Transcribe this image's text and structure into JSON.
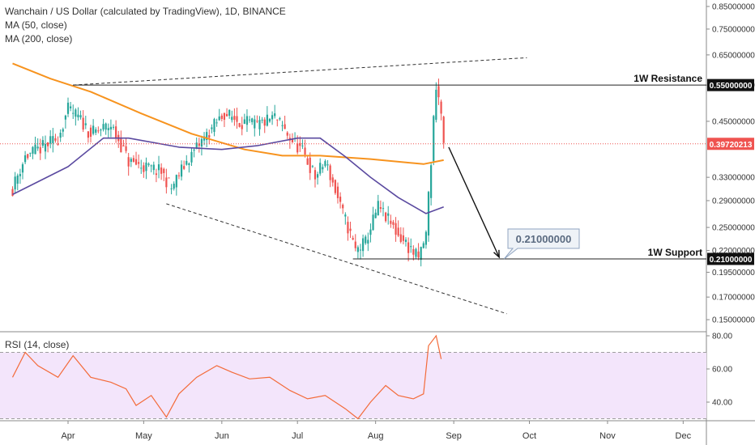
{
  "header": {
    "title": "Wanchain / US Dollar (calculated by TradingView), 1D, BINANCE",
    "ma50_label": "MA (50, close)",
    "ma200_label": "MA (200, close)",
    "rsi_label": "RSI (14, close)"
  },
  "colors": {
    "up": "#26a69a",
    "down": "#ef5350",
    "ma50": "#5b4aa0",
    "ma200": "#f7931e",
    "rsi": "#f36b3a",
    "rsi_band": "#f3e5fb",
    "last_price": "#ef5350"
  },
  "chart_data": [
    {
      "type": "candlestick",
      "title": "Wanchain / US Dollar (calculated by TradingView), 1D, BINANCE",
      "price_axis_labels": [
        "0.85000000",
        "0.75000000",
        "0.65000000",
        "0.55000000",
        "0.45000000",
        "0.39720213",
        "0.33000000",
        "0.29000000",
        "0.25000000",
        "0.22000000",
        "0.21000000",
        "0.19500000",
        "0.17000000",
        "0.15000000"
      ],
      "price_ticks": [
        0.85,
        0.75,
        0.65,
        0.55,
        0.45,
        0.33,
        0.29,
        0.25,
        0.22,
        0.195,
        0.17,
        0.15
      ],
      "time_axis_labels": [
        "Apr",
        "May",
        "Jun",
        "Jul",
        "Aug",
        "Sep",
        "Oct",
        "Nov",
        "Dec"
      ],
      "last_price": 0.39720213,
      "levels": [
        {
          "label": "1W Resistance",
          "value": 0.55
        },
        {
          "label": "1W Support",
          "value": 0.21
        }
      ],
      "target_callout": "0.21000000",
      "close_path": [
        {
          "date": "Mar 10",
          "price": 0.31
        },
        {
          "date": "Mar 15",
          "price": 0.37
        },
        {
          "date": "Mar 22",
          "price": 0.39
        },
        {
          "date": "Mar 28",
          "price": 0.41
        },
        {
          "date": "Apr 1",
          "price": 0.48
        },
        {
          "date": "Apr 5",
          "price": 0.46
        },
        {
          "date": "Apr 10",
          "price": 0.42
        },
        {
          "date": "Apr 18",
          "price": 0.44
        },
        {
          "date": "Apr 25",
          "price": 0.36
        },
        {
          "date": "May 1",
          "price": 0.35
        },
        {
          "date": "May 8",
          "price": 0.34
        },
        {
          "date": "May 12",
          "price": 0.31
        },
        {
          "date": "May 18",
          "price": 0.36
        },
        {
          "date": "May 25",
          "price": 0.41
        },
        {
          "date": "Jun 2",
          "price": 0.47
        },
        {
          "date": "Jun 8",
          "price": 0.45
        },
        {
          "date": "Jun 15",
          "price": 0.44
        },
        {
          "date": "Jun 22",
          "price": 0.46
        },
        {
          "date": "Jun 28",
          "price": 0.41
        },
        {
          "date": "Jul 3",
          "price": 0.38
        },
        {
          "date": "Jul 8",
          "price": 0.33
        },
        {
          "date": "Jul 12",
          "price": 0.36
        },
        {
          "date": "Jul 18",
          "price": 0.28
        },
        {
          "date": "Jul 24",
          "price": 0.22
        },
        {
          "date": "Jul 28",
          "price": 0.23
        },
        {
          "date": "Aug 2",
          "price": 0.28
        },
        {
          "date": "Aug 6",
          "price": 0.26
        },
        {
          "date": "Aug 10",
          "price": 0.24
        },
        {
          "date": "Aug 14",
          "price": 0.225
        },
        {
          "date": "Aug 18",
          "price": 0.21
        },
        {
          "date": "Aug 21",
          "price": 0.24
        },
        {
          "date": "Aug 23",
          "price": 0.36
        },
        {
          "date": "Aug 25",
          "price": 0.55
        },
        {
          "date": "Aug 27",
          "price": 0.47
        },
        {
          "date": "Aug 28",
          "price": 0.397
        }
      ],
      "ma50": [
        {
          "date": "Mar 10",
          "price": 0.3
        },
        {
          "date": "Apr 1",
          "price": 0.35
        },
        {
          "date": "Apr 15",
          "price": 0.41
        },
        {
          "date": "Apr 25",
          "price": 0.41
        },
        {
          "date": "May 15",
          "price": 0.39
        },
        {
          "date": "Jun 1",
          "price": 0.385
        },
        {
          "date": "Jun 15",
          "price": 0.393
        },
        {
          "date": "Jul 1",
          "price": 0.41
        },
        {
          "date": "Jul 10",
          "price": 0.41
        },
        {
          "date": "Jul 20",
          "price": 0.37
        },
        {
          "date": "Jul 30",
          "price": 0.33
        },
        {
          "date": "Aug 10",
          "price": 0.295
        },
        {
          "date": "Aug 21",
          "price": 0.27
        },
        {
          "date": "Aug 28",
          "price": 0.28
        }
      ],
      "ma200": [
        {
          "date": "Mar 10",
          "price": 0.62
        },
        {
          "date": "Mar 25",
          "price": 0.57
        },
        {
          "date": "Apr 10",
          "price": 0.53
        },
        {
          "date": "Apr 30",
          "price": 0.47
        },
        {
          "date": "May 20",
          "price": 0.42
        },
        {
          "date": "Jun 10",
          "price": 0.385
        },
        {
          "date": "Jun 25",
          "price": 0.372
        },
        {
          "date": "Jul 10",
          "price": 0.372
        },
        {
          "date": "Jul 30",
          "price": 0.365
        },
        {
          "date": "Aug 20",
          "price": 0.355
        },
        {
          "date": "Aug 28",
          "price": 0.363
        }
      ],
      "rsi": {
        "title": "RSI (14, close)",
        "tick_labels": [
          "80.00",
          "60.00",
          "40.00"
        ],
        "band": [
          30,
          70
        ],
        "values": [
          {
            "date": "Mar 10",
            "value": 55
          },
          {
            "date": "Mar 15",
            "value": 70
          },
          {
            "date": "Mar 20",
            "value": 62
          },
          {
            "date": "Mar 28",
            "value": 55
          },
          {
            "date": "Apr 3",
            "value": 68
          },
          {
            "date": "Apr 10",
            "value": 55
          },
          {
            "date": "Apr 18",
            "value": 52
          },
          {
            "date": "Apr 24",
            "value": 48
          },
          {
            "date": "Apr 28",
            "value": 38
          },
          {
            "date": "May 4",
            "value": 44
          },
          {
            "date": "May 10",
            "value": 31
          },
          {
            "date": "May 15",
            "value": 45
          },
          {
            "date": "May 22",
            "value": 55
          },
          {
            "date": "May 30",
            "value": 62
          },
          {
            "date": "Jun 5",
            "value": 58
          },
          {
            "date": "Jun 12",
            "value": 54
          },
          {
            "date": "Jun 20",
            "value": 55
          },
          {
            "date": "Jun 28",
            "value": 47
          },
          {
            "date": "Jul 5",
            "value": 42
          },
          {
            "date": "Jul 12",
            "value": 44
          },
          {
            "date": "Jul 20",
            "value": 36
          },
          {
            "date": "Jul 25",
            "value": 30
          },
          {
            "date": "Jul 30",
            "value": 40
          },
          {
            "date": "Aug 5",
            "value": 50
          },
          {
            "date": "Aug 10",
            "value": 44
          },
          {
            "date": "Aug 16",
            "value": 42
          },
          {
            "date": "Aug 20",
            "value": 45
          },
          {
            "date": "Aug 22",
            "value": 74
          },
          {
            "date": "Aug 25",
            "value": 80
          },
          {
            "date": "Aug 27",
            "value": 66
          }
        ]
      }
    }
  ]
}
